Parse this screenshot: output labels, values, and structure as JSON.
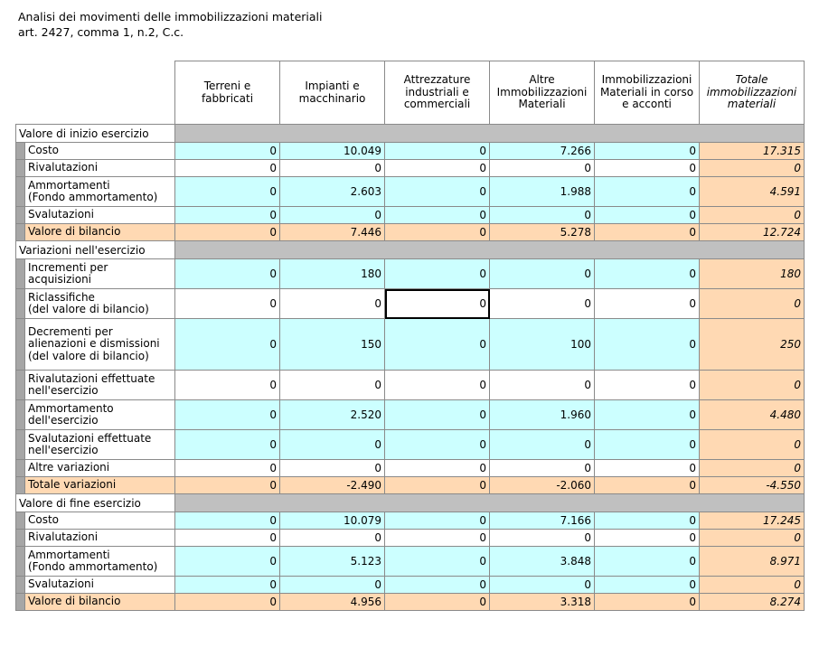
{
  "title_line1": "Analisi dei movimenti delle immobilizzazioni materiali",
  "title_line2": "art. 2427, comma 1, n.2, C.c.",
  "columns": [
    "Terreni e fabbricati",
    "Impianti e macchinario",
    "Attrezzature industriali e commerciali",
    "Altre Immobilizzazioni Materiali",
    "Immobilizzazioni Materiali in corso e acconti",
    "Totale immobilizzazioni materiali"
  ],
  "sections": [
    {
      "title": "Valore di inizio esercizio",
      "rows": [
        {
          "label": "Costo",
          "values": [
            "0",
            "10.049",
            "0",
            "7.266",
            "0",
            "17.315"
          ],
          "style": "cyan"
        },
        {
          "label": "Rivalutazioni",
          "values": [
            "0",
            "0",
            "0",
            "0",
            "0",
            "0"
          ],
          "style": "white"
        },
        {
          "label": "Ammortamenti\n(Fondo ammortamento)",
          "values": [
            "0",
            "2.603",
            "0",
            "1.988",
            "0",
            "4.591"
          ],
          "style": "cyan"
        },
        {
          "label": "Svalutazioni",
          "values": [
            "0",
            "0",
            "0",
            "0",
            "0",
            "0"
          ],
          "style": "cyan"
        },
        {
          "label": "Valore di bilancio",
          "values": [
            "0",
            "7.446",
            "0",
            "5.278",
            "0",
            "12.724"
          ],
          "style": "peach"
        }
      ]
    },
    {
      "title": "Variazioni nell'esercizio",
      "rows": [
        {
          "label": "Incrementi per\nacquisizioni",
          "values": [
            "0",
            "180",
            "0",
            "0",
            "0",
            "180"
          ],
          "style": "cyan"
        },
        {
          "label": "Riclassifiche\n(del valore di bilancio)",
          "values": [
            "0",
            "0",
            "0",
            "0",
            "0",
            "0"
          ],
          "style": "white"
        },
        {
          "label": "Decrementi per\nalienazioni e dismissioni\n(del valore di bilancio)",
          "values": [
            "0",
            "150",
            "0",
            "100",
            "0",
            "250"
          ],
          "style": "cyan"
        },
        {
          "label": "Rivalutazioni effettuate\nnell'esercizio",
          "values": [
            "0",
            "0",
            "0",
            "0",
            "0",
            "0"
          ],
          "style": "white"
        },
        {
          "label": "Ammortamento\ndell'esercizio",
          "values": [
            "0",
            "2.520",
            "0",
            "1.960",
            "0",
            "4.480"
          ],
          "style": "cyan"
        },
        {
          "label": "Svalutazioni effettuate\nnell'esercizio",
          "values": [
            "0",
            "0",
            "0",
            "0",
            "0",
            "0"
          ],
          "style": "cyan"
        },
        {
          "label": "Altre variazioni",
          "values": [
            "0",
            "0",
            "0",
            "0",
            "0",
            "0"
          ],
          "style": "white"
        },
        {
          "label": "Totale variazioni",
          "values": [
            "0",
            "-2.490",
            "0",
            "-2.060",
            "0",
            "-4.550"
          ],
          "style": "peach"
        }
      ]
    },
    {
      "title": "Valore di fine esercizio",
      "rows": [
        {
          "label": "Costo",
          "values": [
            "0",
            "10.079",
            "0",
            "7.166",
            "0",
            "17.245"
          ],
          "style": "cyan"
        },
        {
          "label": "Rivalutazioni",
          "values": [
            "0",
            "0",
            "0",
            "0",
            "0",
            "0"
          ],
          "style": "white"
        },
        {
          "label": "Ammortamenti\n(Fondo ammortamento)",
          "values": [
            "0",
            "5.123",
            "0",
            "3.848",
            "0",
            "8.971"
          ],
          "style": "cyan"
        },
        {
          "label": "Svalutazioni",
          "values": [
            "0",
            "0",
            "0",
            "0",
            "0",
            "0"
          ],
          "style": "cyan"
        },
        {
          "label": "Valore di bilancio",
          "values": [
            "0",
            "4.956",
            "0",
            "3.318",
            "0",
            "8.274"
          ],
          "style": "peach"
        }
      ]
    }
  ]
}
